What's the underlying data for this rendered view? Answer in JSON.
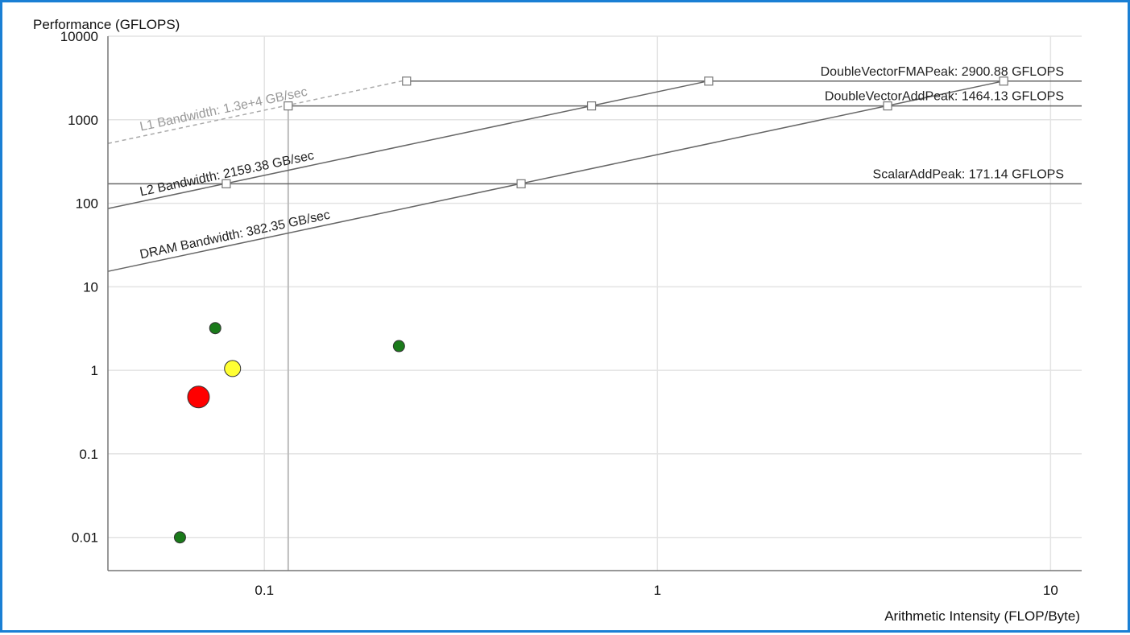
{
  "chart_data": {
    "type": "scatter",
    "title": "",
    "xlabel": "Arithmetic Intensity (FLOP/Byte)",
    "ylabel": "Performance (GFLOPS)",
    "xscale": "log",
    "yscale": "log",
    "xlim": [
      0.04,
      12
    ],
    "ylim": [
      0.004,
      10000
    ],
    "x_ticks": [
      {
        "value": 0.1,
        "label": "0.1"
      },
      {
        "value": 1,
        "label": "1"
      },
      {
        "value": 10,
        "label": "10"
      }
    ],
    "y_ticks": [
      {
        "value": 10000,
        "label": "10000"
      },
      {
        "value": 1000,
        "label": "1000"
      },
      {
        "value": 100,
        "label": "100"
      },
      {
        "value": 10,
        "label": "10"
      },
      {
        "value": 1,
        "label": "1"
      },
      {
        "value": 0.1,
        "label": "0.1"
      },
      {
        "value": 0.01,
        "label": "0.01"
      }
    ],
    "grid": true,
    "compute_roofs": [
      {
        "label": "DoubleVectorFMAPeak: 2900.88 GFLOPS",
        "value": 2900.88,
        "x_start": 0.23,
        "markers": [
          0.23,
          1.35,
          7.6
        ]
      },
      {
        "label": "DoubleVectorAddPeak: 1464.13 GFLOPS",
        "value": 1464.13,
        "x_start": 0.115,
        "markers": [
          0.115,
          0.68,
          3.85
        ]
      },
      {
        "label": "ScalarAddPeak: 171.14 GFLOPS",
        "value": 171.14,
        "x_start": 0.04,
        "markers": [
          0.08,
          0.45
        ]
      }
    ],
    "memory_roofs": [
      {
        "label": "L1 Bandwidth: 1.3e+4 GB/sec",
        "bandwidth": 13000,
        "x_end": 0.23,
        "dashed": true,
        "color": "#aaaaaa"
      },
      {
        "label": "L2 Bandwidth: 2159.38 GB/sec",
        "bandwidth": 2159.38,
        "x_end": 1.35,
        "dashed": false,
        "color": "#666666"
      },
      {
        "label": "DRAM Bandwidth: 382.35 GB/sec",
        "bandwidth": 382.35,
        "x_end": 7.6,
        "dashed": false,
        "color": "#666666"
      }
    ],
    "vertical_line": {
      "x": 0.115,
      "color": "#bbbbbb"
    },
    "points": [
      {
        "x": 0.075,
        "y": 3.2,
        "size": "small",
        "color": "#1a7a1a"
      },
      {
        "x": 0.083,
        "y": 1.05,
        "size": "medium",
        "color": "#ffff33"
      },
      {
        "x": 0.068,
        "y": 0.48,
        "size": "large",
        "color": "#ff0000"
      },
      {
        "x": 0.22,
        "y": 1.95,
        "size": "small",
        "color": "#1a7a1a"
      },
      {
        "x": 0.061,
        "y": 0.01,
        "size": "small",
        "color": "#1a7a1a"
      }
    ],
    "colors": {
      "axis": "#777777",
      "grid": "#e3e3e3",
      "roof": "#666666",
      "border": "#1a7fd4"
    }
  }
}
